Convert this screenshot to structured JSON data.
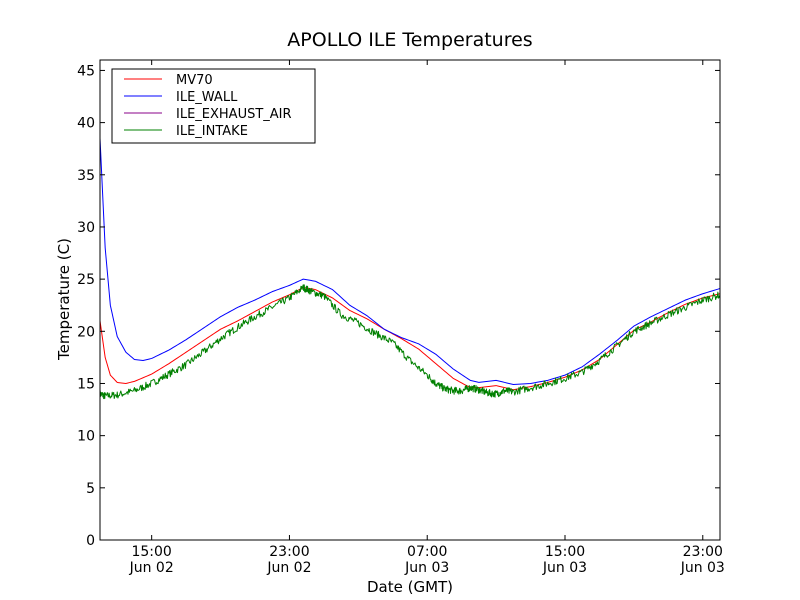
{
  "chart_data": {
    "type": "line",
    "title": "APOLLO ILE Temperatures",
    "xlabel": "Date (GMT)",
    "ylabel": "Temperature (C)",
    "xlim": [
      0,
      36
    ],
    "ylim": [
      0,
      46
    ],
    "x_unit": "hours since Jun 02 12:00 GMT",
    "yticks": [
      0,
      5,
      10,
      15,
      20,
      25,
      30,
      35,
      40,
      45
    ],
    "xticks": [
      {
        "x": 3,
        "time": "15:00",
        "date": "Jun 02"
      },
      {
        "x": 11,
        "time": "23:00",
        "date": "Jun 02"
      },
      {
        "x": 19,
        "time": "07:00",
        "date": "Jun 03"
      },
      {
        "x": 27,
        "time": "15:00",
        "date": "Jun 03"
      },
      {
        "x": 35,
        "time": "23:00",
        "date": "Jun 03"
      }
    ],
    "legend_position": "top-left",
    "series": [
      {
        "name": "MV70",
        "color": "#ff0000",
        "noise": 0,
        "x": [
          0,
          0.3,
          0.6,
          1,
          1.5,
          2,
          3,
          4,
          5,
          6,
          7,
          8,
          9,
          10,
          11,
          11.8,
          12.5,
          13.5,
          14.5,
          15.5,
          16.5,
          17.5,
          18.5,
          19.5,
          20.5,
          21.5,
          22,
          23,
          24,
          25,
          26,
          27,
          28,
          29,
          30,
          31,
          32,
          33,
          34,
          35,
          36
        ],
        "y": [
          21,
          17.5,
          15.8,
          15.1,
          15.0,
          15.2,
          15.9,
          16.9,
          18.0,
          19.1,
          20.2,
          21.0,
          21.9,
          22.8,
          23.5,
          24.2,
          24.0,
          23.2,
          22.0,
          21.2,
          20.2,
          19.3,
          18.3,
          16.9,
          15.5,
          14.6,
          14.6,
          14.8,
          14.4,
          14.7,
          15.1,
          15.6,
          16.3,
          17.3,
          18.7,
          20.1,
          20.9,
          21.8,
          22.6,
          23.2,
          23.6
        ]
      },
      {
        "name": "ILE_WALL",
        "color": "#0000ff",
        "noise": 0,
        "x": [
          0,
          0.3,
          0.6,
          1,
          1.5,
          2,
          2.5,
          3,
          4,
          5,
          6,
          7,
          8,
          9,
          10,
          11,
          11.8,
          12.5,
          13.5,
          14.5,
          15.5,
          16.5,
          17.5,
          18.5,
          19.5,
          20.5,
          21.5,
          22,
          23,
          24,
          25,
          26,
          27,
          28,
          29,
          30,
          31,
          32,
          33,
          34,
          35,
          36
        ],
        "y": [
          38.5,
          28,
          22.5,
          19.5,
          18.0,
          17.3,
          17.2,
          17.4,
          18.2,
          19.2,
          20.3,
          21.4,
          22.3,
          23.0,
          23.8,
          24.4,
          25.0,
          24.8,
          24.0,
          22.5,
          21.5,
          20.2,
          19.4,
          18.8,
          17.8,
          16.4,
          15.3,
          15.1,
          15.3,
          14.9,
          15.0,
          15.3,
          15.8,
          16.6,
          17.8,
          19.1,
          20.5,
          21.4,
          22.2,
          23.0,
          23.6,
          24.1
        ]
      },
      {
        "name": "ILE_EXHAUST_AIR",
        "color": "#8a008a",
        "noise": 0,
        "x": [],
        "y": []
      },
      {
        "name": "ILE_INTAKE",
        "color": "#008000",
        "noise": 0.35,
        "x": [
          0,
          0.3,
          1,
          2,
          3,
          4,
          5,
          6,
          7,
          8,
          9,
          10,
          11,
          11.8,
          12.3,
          13,
          14,
          15,
          16,
          17,
          18,
          19,
          19.5,
          20,
          20.5,
          21,
          21.5,
          22,
          22.5,
          23,
          23.5,
          24,
          25,
          26,
          27,
          28,
          29,
          30,
          31,
          32,
          33,
          34,
          35,
          36
        ],
        "y": [
          14.0,
          13.8,
          13.9,
          14.3,
          15.0,
          15.9,
          16.8,
          18.0,
          19.3,
          20.4,
          21.4,
          22.3,
          23.2,
          24.2,
          23.8,
          23.4,
          21.6,
          20.8,
          19.8,
          18.9,
          17.2,
          15.8,
          15.0,
          14.5,
          14.3,
          14.3,
          14.6,
          14.4,
          14.1,
          14.0,
          14.3,
          14.2,
          14.6,
          15.0,
          15.5,
          16.1,
          17.2,
          18.6,
          20.0,
          20.8,
          21.6,
          22.3,
          23.0,
          23.5
        ]
      }
    ]
  }
}
